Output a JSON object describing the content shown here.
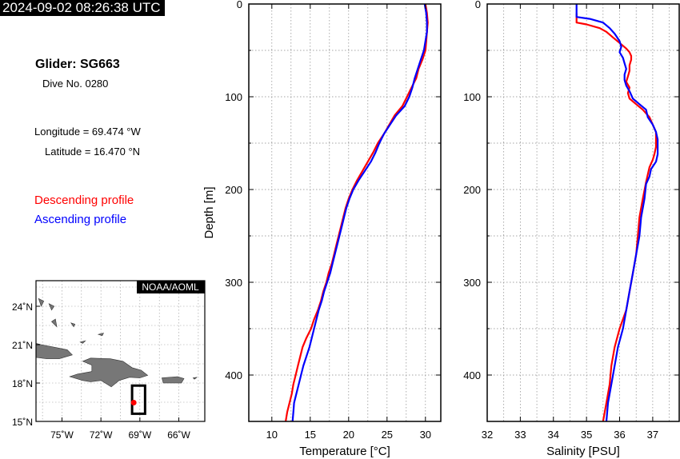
{
  "header": {
    "timestamp": "2024-09-02 08:26:38 UTC",
    "glider_title": "Glider: SG663",
    "dive_no": "Dive No. 0280",
    "longitude": "Longitude = 69.474 °W",
    "latitude": "Latitude = 16.470 °N"
  },
  "legend": {
    "descending_label": "Descending profile",
    "descending_color": "#ff0000",
    "ascending_label": "Ascending profile",
    "ascending_color": "#0000ff"
  },
  "map": {
    "credit": "NOAA/AOML",
    "lat_ticks": [
      "24˚N",
      "21˚N",
      "18˚N",
      "15˚N"
    ],
    "lon_ticks": [
      "75˚W",
      "72˚W",
      "69˚W",
      "66˚W"
    ],
    "lon_range": [
      -77,
      -64
    ],
    "lat_range": [
      15,
      26
    ],
    "glider_position": {
      "lon": -69.474,
      "lat": 16.47
    },
    "track_box": {
      "lon": [
        -69.6,
        -68.6
      ],
      "lat": [
        15.6,
        17.8
      ]
    }
  },
  "chart_data": [
    {
      "type": "line",
      "xlabel": "Temperature [°C]",
      "ylabel": "Depth [m]",
      "xlim": [
        7,
        32
      ],
      "ylim": [
        450,
        0
      ],
      "x_ticks": [
        10,
        15,
        20,
        25,
        30
      ],
      "y_ticks": [
        0,
        100,
        200,
        300,
        400
      ],
      "grid": true,
      "series": [
        {
          "name": "Descending profile",
          "color": "#ff0000",
          "points": [
            [
              30.0,
              0
            ],
            [
              30.2,
              10
            ],
            [
              30.3,
              20
            ],
            [
              30.2,
              30
            ],
            [
              30.1,
              40
            ],
            [
              30.0,
              50
            ],
            [
              29.6,
              60
            ],
            [
              29.1,
              70
            ],
            [
              28.8,
              80
            ],
            [
              28.2,
              90
            ],
            [
              27.6,
              100
            ],
            [
              27.0,
              110
            ],
            [
              26.0,
              120
            ],
            [
              25.3,
              130
            ],
            [
              24.6,
              140
            ],
            [
              23.8,
              150
            ],
            [
              23.2,
              160
            ],
            [
              22.5,
              170
            ],
            [
              21.8,
              180
            ],
            [
              21.1,
              190
            ],
            [
              20.5,
              200
            ],
            [
              20.0,
              210
            ],
            [
              19.6,
              220
            ],
            [
              19.3,
              230
            ],
            [
              19.0,
              240
            ],
            [
              18.7,
              250
            ],
            [
              18.4,
              260
            ],
            [
              18.1,
              270
            ],
            [
              17.8,
              280
            ],
            [
              17.4,
              290
            ],
            [
              17.1,
              300
            ],
            [
              16.7,
              310
            ],
            [
              16.4,
              320
            ],
            [
              16.0,
              330
            ],
            [
              15.5,
              340
            ],
            [
              15.1,
              350
            ],
            [
              14.5,
              360
            ],
            [
              14.0,
              370
            ],
            [
              13.7,
              380
            ],
            [
              13.4,
              390
            ],
            [
              13.1,
              400
            ],
            [
              12.8,
              410
            ],
            [
              12.6,
              420
            ],
            [
              12.3,
              430
            ],
            [
              12.0,
              440
            ],
            [
              11.8,
              450
            ]
          ]
        },
        {
          "name": "Ascending profile",
          "color": "#0000ff",
          "points": [
            [
              29.9,
              0
            ],
            [
              30.1,
              10
            ],
            [
              30.2,
              20
            ],
            [
              30.2,
              30
            ],
            [
              30.0,
              40
            ],
            [
              29.8,
              50
            ],
            [
              29.4,
              60
            ],
            [
              29.0,
              70
            ],
            [
              28.6,
              80
            ],
            [
              28.3,
              90
            ],
            [
              27.9,
              100
            ],
            [
              27.3,
              110
            ],
            [
              26.2,
              120
            ],
            [
              25.4,
              130
            ],
            [
              24.6,
              140
            ],
            [
              24.0,
              150
            ],
            [
              23.5,
              160
            ],
            [
              22.9,
              170
            ],
            [
              22.1,
              180
            ],
            [
              21.3,
              190
            ],
            [
              20.6,
              200
            ],
            [
              20.1,
              210
            ],
            [
              19.7,
              220
            ],
            [
              19.4,
              230
            ],
            [
              19.1,
              240
            ],
            [
              18.8,
              250
            ],
            [
              18.5,
              260
            ],
            [
              18.2,
              270
            ],
            [
              17.9,
              280
            ],
            [
              17.6,
              290
            ],
            [
              17.2,
              300
            ],
            [
              16.8,
              310
            ],
            [
              16.5,
              320
            ],
            [
              16.1,
              330
            ],
            [
              15.8,
              340
            ],
            [
              15.5,
              350
            ],
            [
              15.2,
              360
            ],
            [
              14.9,
              370
            ],
            [
              14.5,
              380
            ],
            [
              14.1,
              390
            ],
            [
              13.8,
              400
            ],
            [
              13.5,
              410
            ],
            [
              13.2,
              420
            ],
            [
              12.9,
              430
            ],
            [
              12.8,
              440
            ],
            [
              12.7,
              450
            ]
          ]
        }
      ]
    },
    {
      "type": "line",
      "xlabel": "Salinity [PSU]",
      "ylabel": "",
      "xlim": [
        32,
        37.8
      ],
      "ylim": [
        450,
        0
      ],
      "x_ticks": [
        32,
        33,
        34,
        35,
        36,
        37
      ],
      "y_ticks": [
        0,
        100,
        200,
        300,
        400
      ],
      "grid": true,
      "series": [
        {
          "name": "Descending profile",
          "color": "#ff0000",
          "points": [
            [
              34.7,
              10
            ],
            [
              34.7,
              20
            ],
            [
              35.0,
              22
            ],
            [
              35.4,
              26
            ],
            [
              35.6,
              30
            ],
            [
              35.8,
              36
            ],
            [
              36.0,
              42
            ],
            [
              36.2,
              48
            ],
            [
              36.3,
              52
            ],
            [
              36.35,
              56
            ],
            [
              36.35,
              60
            ],
            [
              36.3,
              66
            ],
            [
              36.3,
              72
            ],
            [
              36.25,
              78
            ],
            [
              36.2,
              84
            ],
            [
              36.3,
              90
            ],
            [
              36.25,
              96
            ],
            [
              36.3,
              102
            ],
            [
              36.5,
              108
            ],
            [
              36.7,
              114
            ],
            [
              36.9,
              122
            ],
            [
              37.0,
              130
            ],
            [
              37.1,
              138
            ],
            [
              37.1,
              146
            ],
            [
              37.1,
              154
            ],
            [
              37.05,
              162
            ],
            [
              37.0,
              168
            ],
            [
              36.9,
              176
            ],
            [
              36.85,
              184
            ],
            [
              36.8,
              192
            ],
            [
              36.7,
              210
            ],
            [
              36.6,
              230
            ],
            [
              36.55,
              250
            ],
            [
              36.5,
              270
            ],
            [
              36.4,
              290
            ],
            [
              36.3,
              310
            ],
            [
              36.2,
              330
            ],
            [
              36.0,
              350
            ],
            [
              35.85,
              370
            ],
            [
              35.75,
              390
            ],
            [
              35.7,
              410
            ],
            [
              35.6,
              430
            ],
            [
              35.5,
              450
            ]
          ]
        },
        {
          "name": "Ascending profile",
          "color": "#0000ff",
          "points": [
            [
              34.7,
              0
            ],
            [
              34.7,
              10
            ],
            [
              34.7,
              14
            ],
            [
              35.1,
              16
            ],
            [
              35.5,
              20
            ],
            [
              35.7,
              26
            ],
            [
              35.85,
              32
            ],
            [
              36.0,
              40
            ],
            [
              36.05,
              46
            ],
            [
              36.0,
              52
            ],
            [
              36.1,
              58
            ],
            [
              36.15,
              64
            ],
            [
              36.2,
              70
            ],
            [
              36.15,
              76
            ],
            [
              36.15,
              82
            ],
            [
              36.2,
              88
            ],
            [
              36.3,
              94
            ],
            [
              36.4,
              102
            ],
            [
              36.6,
              108
            ],
            [
              36.8,
              114
            ],
            [
              36.85,
              122
            ],
            [
              37.0,
              130
            ],
            [
              37.1,
              138
            ],
            [
              37.15,
              146
            ],
            [
              37.15,
              154
            ],
            [
              37.15,
              162
            ],
            [
              37.1,
              170
            ],
            [
              36.95,
              178
            ],
            [
              36.9,
              186
            ],
            [
              36.8,
              194
            ],
            [
              36.75,
              210
            ],
            [
              36.65,
              230
            ],
            [
              36.6,
              250
            ],
            [
              36.5,
              270
            ],
            [
              36.4,
              290
            ],
            [
              36.3,
              310
            ],
            [
              36.2,
              330
            ],
            [
              36.1,
              350
            ],
            [
              35.95,
              370
            ],
            [
              35.85,
              390
            ],
            [
              35.75,
              410
            ],
            [
              35.65,
              430
            ],
            [
              35.6,
              450
            ]
          ]
        }
      ]
    }
  ]
}
